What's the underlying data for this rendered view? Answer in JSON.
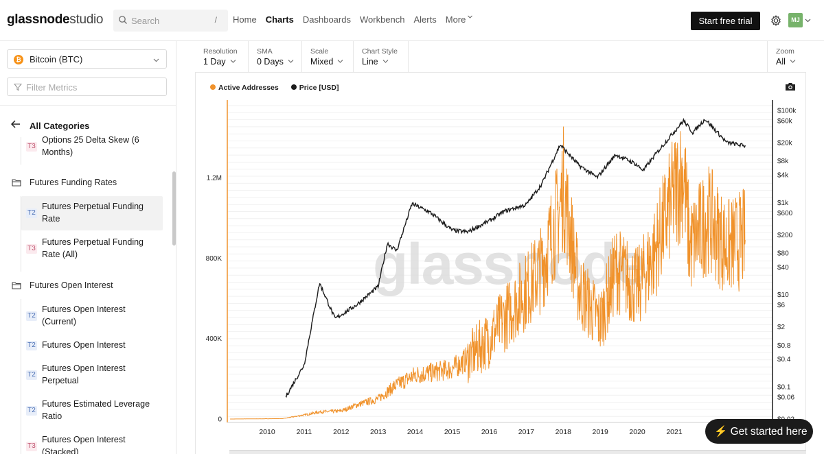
{
  "header": {
    "logo_bold": "glassnode",
    "logo_light": "studio",
    "search_placeholder": "Search",
    "search_shortcut": "/",
    "nav": [
      "Home",
      "Charts",
      "Dashboards",
      "Workbench",
      "Alerts",
      "More"
    ],
    "nav_active": "Charts",
    "cta": "Start free trial",
    "avatar": "MJ"
  },
  "sidebar": {
    "asset": "Bitcoin (BTC)",
    "filter_placeholder": "Filter Metrics",
    "back_label": "All Categories",
    "items": [
      {
        "tier": "T3",
        "label": "Options 25 Delta Skew (6 Months)"
      },
      {
        "folder": "Futures Funding Rates"
      },
      {
        "tier": "T2",
        "label": "Futures Perpetual Funding Rate"
      },
      {
        "tier": "T3",
        "label": "Futures Perpetual Funding Rate (All)"
      },
      {
        "folder": "Futures Open Interest"
      },
      {
        "tier": "T2",
        "label": "Futures Open Interest (Current)"
      },
      {
        "tier": "T2",
        "label": "Futures Open Interest"
      },
      {
        "tier": "T2",
        "label": "Futures Open Interest Perpetual"
      },
      {
        "tier": "T2",
        "label": "Futures Estimated Leverage Ratio"
      },
      {
        "tier": "T3",
        "label": "Futures Open Interest (Stacked)"
      }
    ]
  },
  "toolbar": {
    "resolution_label": "Resolution",
    "resolution_value": "1 Day",
    "sma_label": "SMA",
    "sma_value": "0 Days",
    "scale_label": "Scale",
    "scale_value": "Mixed",
    "style_label": "Chart Style",
    "style_value": "Line",
    "zoom_label": "Zoom",
    "zoom_value": "All"
  },
  "chart_data": {
    "type": "line",
    "legend_placement": "top-left",
    "watermark": "glassnode",
    "series": [
      {
        "name": "Active Addresses",
        "color": "#f0922b",
        "axis": "left-linear",
        "x": [
          "2009-01",
          "2010-06",
          "2011-01",
          "2011-06",
          "2012-01",
          "2012-06",
          "2013-01",
          "2013-06",
          "2014-01",
          "2014-06",
          "2015-01",
          "2015-06",
          "2016-01",
          "2016-06",
          "2017-01",
          "2017-06",
          "2017-12",
          "2018-01",
          "2018-06",
          "2019-01",
          "2019-06",
          "2020-01",
          "2020-06",
          "2021-01",
          "2021-04",
          "2021-06",
          "2021-12",
          "2022-06",
          "2022-12"
        ],
        "values": [
          0,
          2000,
          20000,
          35000,
          40000,
          70000,
          100000,
          160000,
          220000,
          230000,
          250000,
          300000,
          400000,
          500000,
          640000,
          750000,
          1050000,
          1160000,
          650000,
          480000,
          750000,
          650000,
          800000,
          1120000,
          1230000,
          850000,
          1000000,
          850000,
          900000
        ]
      },
      {
        "name": "Price [USD]",
        "color": "#1c1c1c",
        "axis": "right-log",
        "x": [
          "2010-07",
          "2011-01",
          "2011-06",
          "2011-11",
          "2012-06",
          "2013-01",
          "2013-04",
          "2013-07",
          "2013-12",
          "2014-06",
          "2015-01",
          "2015-06",
          "2016-01",
          "2016-06",
          "2017-01",
          "2017-06",
          "2017-12",
          "2018-06",
          "2018-12",
          "2019-06",
          "2019-12",
          "2020-03",
          "2020-06",
          "2020-12",
          "2021-04",
          "2021-07",
          "2021-11",
          "2022-06",
          "2022-12"
        ],
        "values": [
          0.06,
          0.3,
          18,
          3,
          6,
          15,
          130,
          90,
          950,
          600,
          250,
          230,
          400,
          650,
          900,
          2500,
          18000,
          6500,
          3500,
          11000,
          7200,
          5000,
          9300,
          29000,
          60000,
          33000,
          65000,
          20000,
          17000
        ]
      }
    ],
    "x_ticks": [
      "2010",
      "2011",
      "2012",
      "2013",
      "2014",
      "2015",
      "2016",
      "2017",
      "2018",
      "2019",
      "2020",
      "2021"
    ],
    "y_left_ticks": [
      "0",
      "400K",
      "800K",
      "1.2M"
    ],
    "y_right_ticks": [
      "$100k",
      "$60k",
      "$20k",
      "$8k",
      "$4k",
      "$1k",
      "$600",
      "$200",
      "$80",
      "$40",
      "$10",
      "$6",
      "$2",
      "$0.8",
      "$0.4",
      "$0.1",
      "$0.06",
      "$0.02"
    ]
  },
  "overlay": {
    "get_started": "⚡ Get started here"
  }
}
